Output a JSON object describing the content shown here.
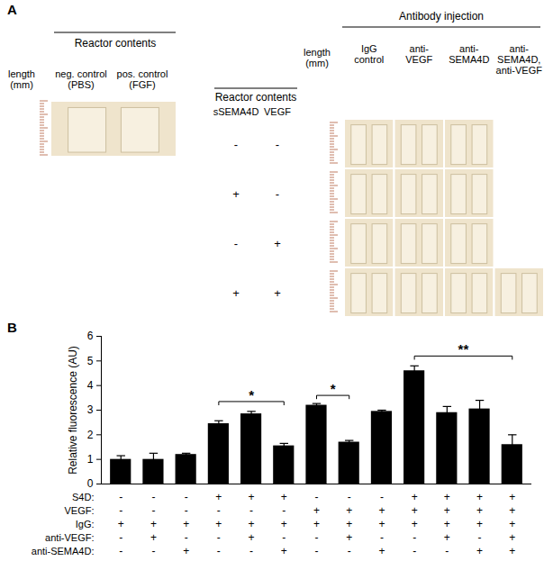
{
  "panel_a": {
    "label": "A",
    "controls": {
      "header": "Reactor contents",
      "length_label": [
        "length",
        "(mm)"
      ],
      "columns": [
        [
          "neg. control",
          "(PBS)"
        ],
        [
          "pos. control",
          "(FGF)"
        ]
      ]
    },
    "treatments": {
      "header": "Reactor contents",
      "factors": [
        "sSEMA4D",
        "VEGF"
      ],
      "rows": [
        [
          "-",
          "-"
        ],
        [
          "+",
          "-"
        ],
        [
          "-",
          "+"
        ],
        [
          "+",
          "+"
        ]
      ]
    },
    "antibody": {
      "header": "Antibody injection",
      "length_label": [
        "length",
        "(mm)"
      ],
      "columns": [
        [
          "IgG",
          "control"
        ],
        [
          "anti-",
          "VEGF"
        ],
        [
          "anti-",
          "SEMA4D"
        ],
        [
          "anti-",
          "SEMA4D,",
          "anti-VEGF"
        ]
      ],
      "cells_per_row": [
        3,
        3,
        3,
        4
      ]
    }
  },
  "chart_data": {
    "type": "bar",
    "panel_label": "B",
    "y_label": "Relative fluorescence (AU)",
    "categories": [
      null,
      null,
      null,
      null,
      null,
      null,
      null,
      null,
      null,
      null,
      null,
      null,
      null
    ],
    "values": [
      1.0,
      1.0,
      1.2,
      2.45,
      2.85,
      1.55,
      3.2,
      1.7,
      2.95,
      4.6,
      2.9,
      3.05,
      1.6
    ],
    "errors": [
      0.15,
      0.25,
      0.05,
      0.12,
      0.1,
      0.1,
      0.07,
      0.07,
      0.05,
      0.2,
      0.25,
      0.35,
      0.4
    ],
    "color": "#000000",
    "ylim": [
      0,
      6
    ],
    "yticks": [
      0,
      1,
      2,
      3,
      4,
      5,
      6
    ],
    "grid": false,
    "conditions": [
      {
        "label": "S4D:",
        "values": [
          "-",
          "-",
          "-",
          "+",
          "+",
          "+",
          "-",
          "-",
          "-",
          "+",
          "+",
          "+",
          "+"
        ]
      },
      {
        "label": "VEGF:",
        "values": [
          "-",
          "-",
          "-",
          "-",
          "-",
          "-",
          "+",
          "+",
          "+",
          "+",
          "+",
          "+",
          "+"
        ]
      },
      {
        "label": "IgG:",
        "values": [
          "+",
          "+",
          "+",
          "+",
          "+",
          "+",
          "+",
          "+",
          "+",
          "+",
          "+",
          "+",
          "+"
        ]
      },
      {
        "label": "anti-VEGF:",
        "values": [
          "-",
          "+",
          "-",
          "-",
          "+",
          "-",
          "-",
          "+",
          "-",
          "-",
          "+",
          "-",
          "+"
        ]
      },
      {
        "label": "anti-SEMA4D:",
        "values": [
          "-",
          "-",
          "+",
          "-",
          "-",
          "+",
          "-",
          "-",
          "+",
          "-",
          "-",
          "+",
          "+"
        ]
      }
    ],
    "significance": [
      {
        "from": 3,
        "to": 5,
        "y": 3.35,
        "label": "*"
      },
      {
        "from": 6,
        "to": 7,
        "y": 3.6,
        "label": "*"
      },
      {
        "from": 9,
        "to": 12,
        "y": 5.2,
        "label": "**"
      }
    ]
  }
}
